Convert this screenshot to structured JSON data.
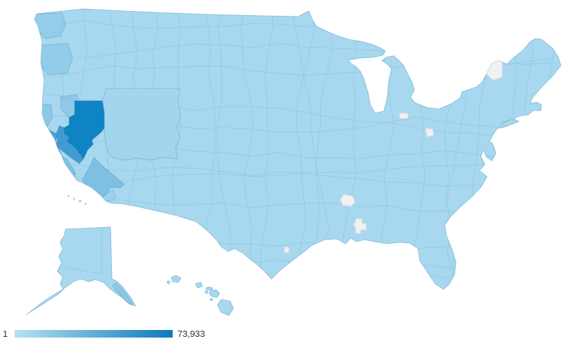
{
  "chart_data": {
    "type": "choropleth",
    "map": "United States by metro area (DMA regions)",
    "legend": {
      "min_label": "1",
      "max_label": "73,933"
    },
    "scale": {
      "min_value": 1,
      "max_value": 73933,
      "min_color": "#b5e1f3",
      "max_color": "#0d7abc",
      "base_color": "#a8d8f0",
      "no_data_color": "#f1f1f1",
      "border_color": "#8ec4db",
      "coast_color": "#8cc0d8"
    },
    "regions": [
      {
        "id": "salt-lake-city",
        "area": "Utah / eastern Nevada (Salt Lake City)",
        "intensity": "highest",
        "value_estimate": 73933,
        "color": "#0e84c5"
      },
      {
        "id": "reno-sacramento",
        "area": "Western Nevada / Sacramento valley band",
        "intensity": "high",
        "color": "#3f9bd1"
      },
      {
        "id": "sf-bay-area",
        "area": "San Francisco Bay Area coast",
        "intensity": "high",
        "color": "#4aa3d5"
      },
      {
        "id": "las-vegas",
        "area": "Southern Nevada / SE California (Las Vegas)",
        "intensity": "medium",
        "color": "#7dc0e3"
      },
      {
        "id": "central-ca-coast",
        "area": "California central coast (Monterey)",
        "intensity": "medium",
        "color": "#7fc1e4"
      },
      {
        "id": "seattle",
        "area": "Puget Sound (Seattle-Tacoma)",
        "intensity": "low-medium",
        "color": "#93cde9"
      },
      {
        "id": "portland",
        "area": "NW Oregon (Portland)",
        "intensity": "low-medium",
        "color": "#91cce9"
      },
      {
        "id": "eureka",
        "area": "NW California coast (Eureka)",
        "intensity": "low-medium",
        "color": "#8cc8e7"
      },
      {
        "id": "boise",
        "area": "Southern Idaho (Boise / Twin Falls)",
        "intensity": "low-medium",
        "color": "#8fc9e7"
      },
      {
        "id": "denver",
        "area": "Colorado / central Rockies",
        "intensity": "low",
        "color": "#a2d5ee"
      },
      {
        "id": "los-angeles",
        "area": "Los Angeles area",
        "intensity": "low",
        "color": "#9dd3ed"
      },
      {
        "id": "juneau",
        "area": "SE Alaska panhandle (Juneau)",
        "intensity": "low-medium",
        "color": "#8cc7e6"
      },
      {
        "id": "all-other-regions",
        "area": "Rest of United States",
        "intensity": "lowest",
        "color": "#a8d8f0"
      }
    ],
    "no_data_regions": [
      {
        "id": "northern-new-york",
        "area": "northern New York"
      },
      {
        "id": "ne-michigan",
        "area": "NE lower Michigan"
      },
      {
        "id": "western-indiana",
        "area": "western Indiana"
      },
      {
        "id": "se-ohio",
        "area": "SE Ohio"
      },
      {
        "id": "ne-texas",
        "area": "NE Texas"
      },
      {
        "id": "east-texas",
        "area": "east Texas"
      },
      {
        "id": "texas-gulf-coast",
        "area": "Texas gulf coast"
      }
    ]
  }
}
